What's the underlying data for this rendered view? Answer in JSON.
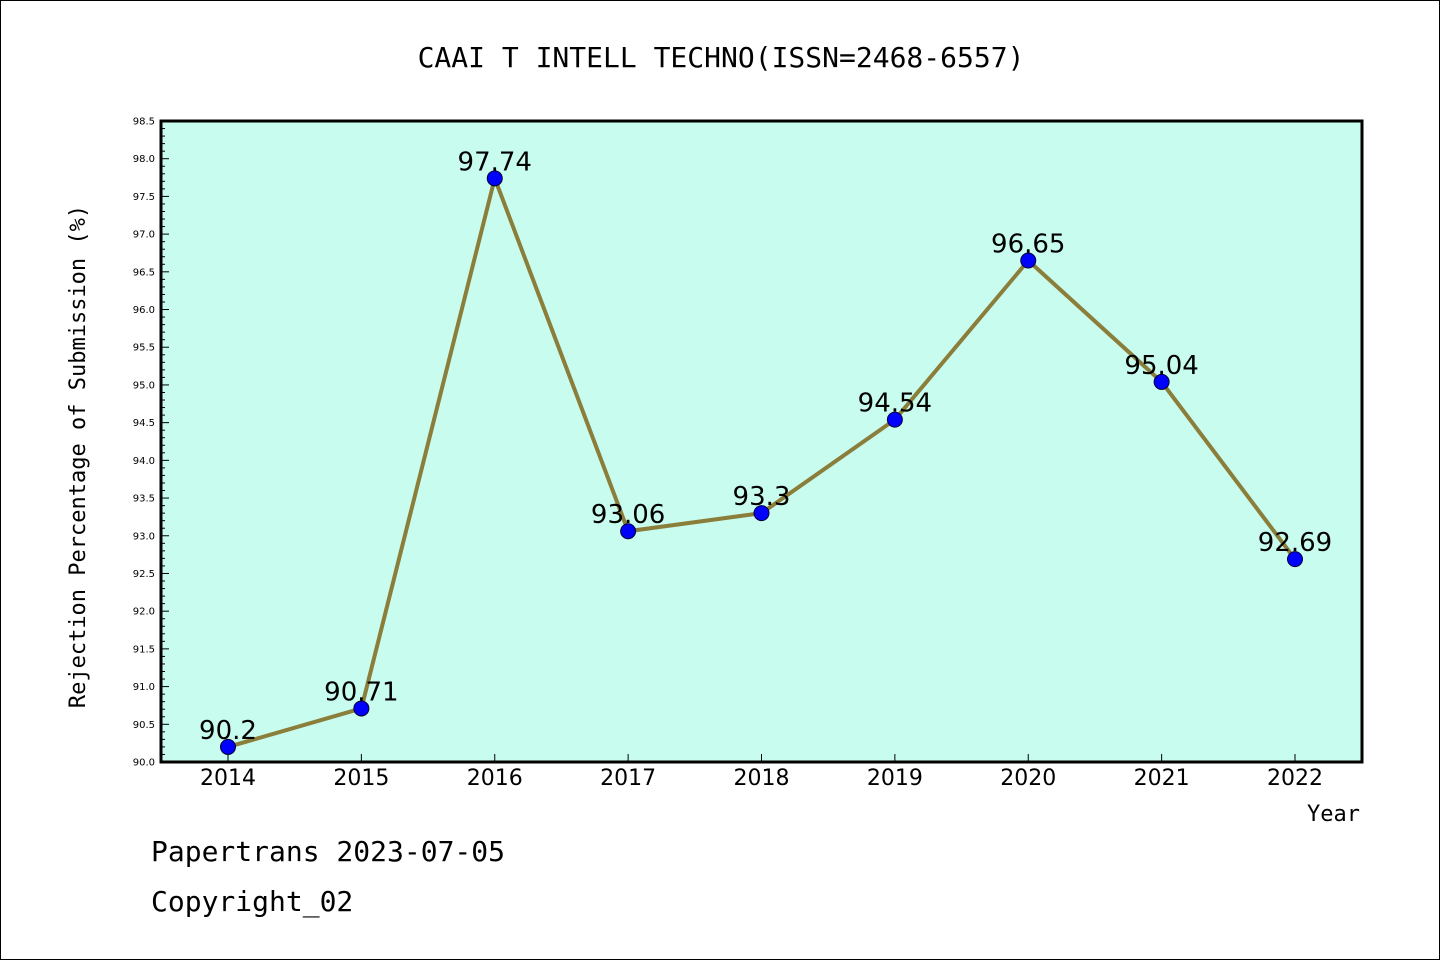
{
  "chart_data": {
    "type": "line",
    "title": "CAAI T INTELL TECHNO(ISSN=2468-6557)",
    "xlabel": "Year",
    "ylabel": "Rejection Percentage of Submission (%)",
    "categories": [
      "2014",
      "2015",
      "2016",
      "2017",
      "2018",
      "2019",
      "2020",
      "2021",
      "2022"
    ],
    "series": [
      {
        "values": [
          90.2,
          90.71,
          97.74,
          93.06,
          93.3,
          94.54,
          96.65,
          95.04,
          92.69
        ],
        "labels": [
          "90.2",
          "90.71",
          "97.74",
          "93.06",
          "93.3",
          "94.54",
          "96.65",
          "95.04",
          "92.69"
        ]
      }
    ],
    "ylim": [
      90.0,
      98.5
    ],
    "yticks": [
      "90.0",
      "90.5",
      "91.0",
      "91.5",
      "92.0",
      "92.5",
      "93.0",
      "93.5",
      "94.0",
      "94.5",
      "95.0",
      "95.5",
      "96.0",
      "96.5",
      "97.0",
      "97.5",
      "98.0",
      "98.5"
    ],
    "grid": false,
    "colors": {
      "plot_background": "#c8fcee",
      "line": "#8b7d3a",
      "marker": "#0000ff"
    }
  },
  "footer": {
    "line1": "Papertrans 2023-07-05",
    "line2": "Copyright_02"
  }
}
